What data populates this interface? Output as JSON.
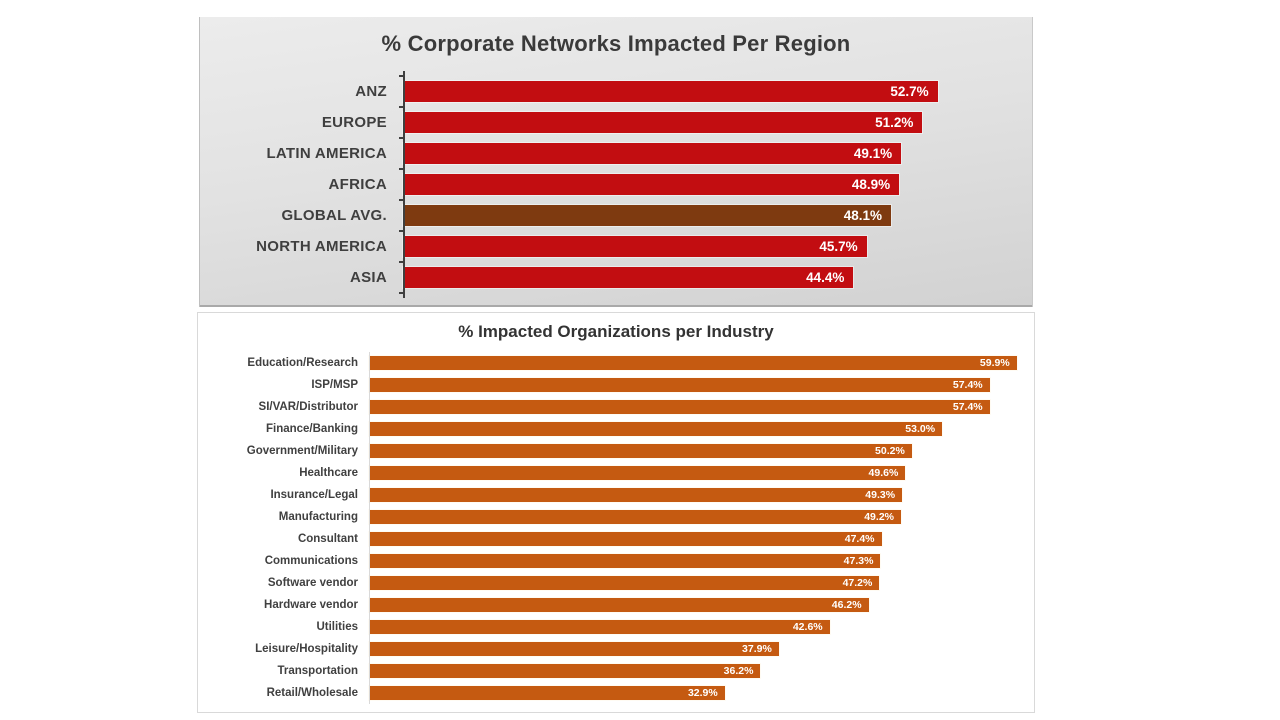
{
  "page": {
    "background": "#FFFFFF"
  },
  "chart_data": [
    {
      "type": "bar",
      "orientation": "horizontal",
      "title": "% Corporate Networks Impacted Per Region",
      "categories": [
        "ANZ",
        "EUROPE",
        "LATIN AMERICA",
        "AFRICA",
        "GLOBAL AVG.",
        "NORTH AMERICA",
        "ASIA"
      ],
      "values": [
        52.7,
        51.2,
        49.1,
        48.9,
        48.1,
        45.7,
        44.4
      ],
      "value_labels": [
        "52.7%",
        "51.2%",
        "49.1%",
        "48.9%",
        "48.1%",
        "45.7%",
        "44.4%"
      ],
      "xlim": [
        0,
        62
      ],
      "grid": false,
      "legend": "none",
      "bar_color": "#C20D11",
      "highlight_category": "GLOBAL AVG.",
      "highlight_color": "#7E3A10",
      "category_label_color": "#3F3F3F",
      "value_label_color": "#FFFFFF",
      "axis": {
        "visible": true,
        "color": "#3F3F3F",
        "width": 2,
        "ticks": true,
        "overhang": 5
      },
      "panel_background": "gray-gradient"
    },
    {
      "type": "bar",
      "orientation": "horizontal",
      "title": "% Impacted Organizations per Industry",
      "categories": [
        "Education/Research",
        "ISP/MSP",
        "SI/VAR/Distributor",
        "Finance/Banking",
        "Government/Military",
        "Healthcare",
        "Insurance/Legal",
        "Manufacturing",
        "Consultant",
        "Communications",
        "Software vendor",
        "Hardware vendor",
        "Utilities",
        "Leisure/Hospitality",
        "Transportation",
        "Retail/Wholesale"
      ],
      "values": [
        59.9,
        57.4,
        57.4,
        53.0,
        50.2,
        49.6,
        49.3,
        49.2,
        47.4,
        47.3,
        47.2,
        46.2,
        42.6,
        37.9,
        36.2,
        32.9
      ],
      "value_labels": [
        "59.9%",
        "57.4%",
        "57.4%",
        "53.0%",
        "50.2%",
        "49.6%",
        "49.3%",
        "49.2%",
        "47.4%",
        "47.3%",
        "47.2%",
        "46.2%",
        "42.6%",
        "37.9%",
        "36.2%",
        "32.9%"
      ],
      "xlim": [
        0,
        61.5
      ],
      "grid": false,
      "legend": "none",
      "bar_color": "#C55A11",
      "highlight_category": null,
      "highlight_color": null,
      "category_label_color": "#404040",
      "value_label_color": "#FFFFFF",
      "axis": {
        "visible": true,
        "color": "#D9D9D9",
        "width": 1,
        "ticks": false,
        "overhang": 0
      },
      "panel_background": "white"
    }
  ]
}
